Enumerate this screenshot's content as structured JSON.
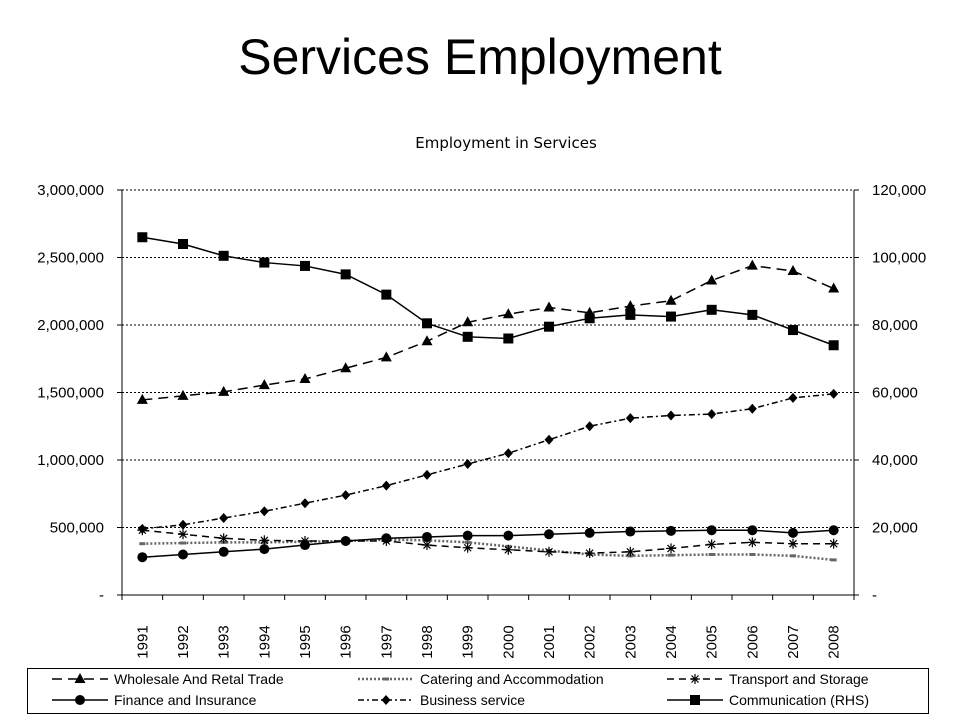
{
  "page_title": "Services Employment",
  "chart_data": {
    "type": "line",
    "title": "Employment in Services",
    "categories": [
      "1991",
      "1992",
      "1993",
      "1994",
      "1995",
      "1996",
      "1997",
      "1998",
      "1999",
      "2000",
      "2001",
      "2002",
      "2003",
      "2004",
      "2005",
      "2006",
      "2007",
      "2008"
    ],
    "y_left": {
      "min": 0,
      "max": 3000000,
      "ticks": [
        "-",
        "500,000",
        "1,000,000",
        "1,500,000",
        "2,000,000",
        "2,500,000",
        "3,000,000"
      ]
    },
    "y_right": {
      "min": 0,
      "max": 120000,
      "ticks": [
        "-",
        "20,000",
        "40,000",
        "60,000",
        "80,000",
        "100,000",
        "120,000"
      ]
    },
    "grid": "horizontal dotted",
    "legend_position": "bottom",
    "series": [
      {
        "name": "Wholesale And Retal Trade",
        "axis": "left",
        "marker": "triangle",
        "dash": "long-dash",
        "color": "#000000",
        "values": [
          1445000,
          1475000,
          1505000,
          1555000,
          1600000,
          1680000,
          1760000,
          1880000,
          2020000,
          2080000,
          2130000,
          2090000,
          2140000,
          2180000,
          2330000,
          2440000,
          2400000,
          2270000
        ]
      },
      {
        "name": "Catering and Accommodation",
        "axis": "left",
        "marker": "dash",
        "dash": "dotted",
        "color": "#666666",
        "values": [
          380000,
          385000,
          390000,
          390000,
          395000,
          400000,
          410000,
          405000,
          390000,
          360000,
          330000,
          300000,
          290000,
          295000,
          300000,
          300000,
          290000,
          260000
        ]
      },
      {
        "name": "Transport and Storage",
        "axis": "left",
        "marker": "star",
        "dash": "dash",
        "color": "#000000",
        "values": [
          480000,
          450000,
          420000,
          405000,
          400000,
          400000,
          400000,
          370000,
          350000,
          335000,
          320000,
          310000,
          320000,
          345000,
          375000,
          390000,
          380000,
          380000
        ]
      },
      {
        "name": "Finance and Insurance",
        "axis": "left",
        "marker": "circle",
        "dash": "solid",
        "color": "#000000",
        "values": [
          280000,
          300000,
          320000,
          340000,
          370000,
          400000,
          420000,
          430000,
          440000,
          440000,
          450000,
          460000,
          470000,
          475000,
          480000,
          480000,
          460000,
          480000
        ]
      },
      {
        "name": "Business service",
        "axis": "left",
        "marker": "diamond",
        "dash": "dash-dot",
        "color": "#000000",
        "values": [
          490000,
          520000,
          570000,
          620000,
          680000,
          740000,
          810000,
          890000,
          970000,
          1050000,
          1150000,
          1250000,
          1310000,
          1330000,
          1340000,
          1380000,
          1460000,
          1490000
        ]
      },
      {
        "name": "Communication (RHS)",
        "axis": "right",
        "marker": "square",
        "dash": "solid",
        "color": "#000000",
        "values": [
          106000,
          104000,
          100500,
          98500,
          97500,
          95000,
          89000,
          80500,
          76500,
          76000,
          79500,
          82000,
          83000,
          82500,
          84500,
          83000,
          78500,
          74000
        ]
      }
    ]
  }
}
